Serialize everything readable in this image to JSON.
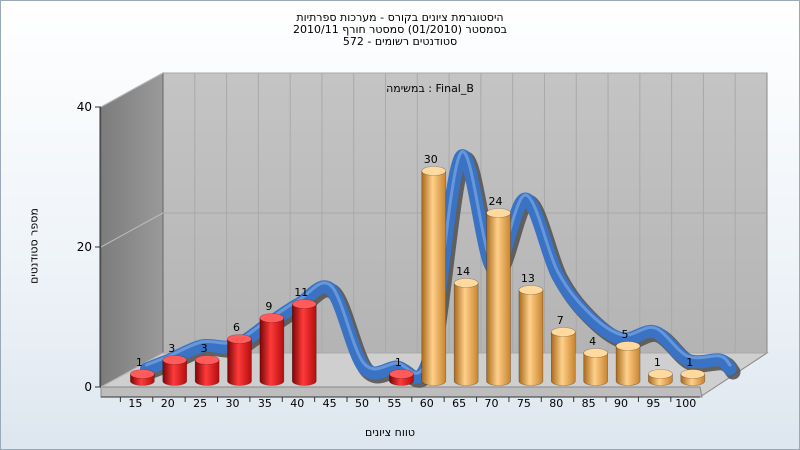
{
  "chart": {
    "title_lines": [
      "היסטוגרמת ציונים בקורס - מערכות ספרתיות",
      "בסמסטר (01/2010) סמסטר חורף 2010/11",
      "572 - סטודנטים רשומים"
    ],
    "task_label": "במשימה : Final_B",
    "ylabel": "מספר סטודנטים",
    "xlabel": "טווח ציונים"
  },
  "chart_data": {
    "type": "bar",
    "title": "היסטוגרמת ציונים בקורס - מערכות ספרתיות",
    "categories": [
      "15",
      "20",
      "25",
      "30",
      "35",
      "40",
      "45",
      "50",
      "55",
      "60",
      "65",
      "70",
      "75",
      "80",
      "85",
      "90",
      "95",
      "100"
    ],
    "values": [
      1,
      3,
      3,
      6,
      9,
      11,
      0,
      0,
      1,
      30,
      14,
      24,
      13,
      7,
      4,
      5,
      1,
      1
    ],
    "bar_colors": [
      "red",
      "red",
      "red",
      "red",
      "red",
      "red",
      "none",
      "none",
      "red",
      "orange",
      "orange",
      "orange",
      "orange",
      "orange",
      "orange",
      "orange",
      "orange",
      "orange"
    ],
    "xlabel": "טווח ציונים",
    "ylabel": "מספר סטודנטים",
    "ylim": [
      0,
      40
    ],
    "yticks": [
      0,
      20,
      40
    ],
    "grid": true,
    "legend": "none",
    "colors": {
      "fail": "#e01e1e",
      "pass": "#e9a33e",
      "curve": "#3a73c4",
      "curve_back": "#666666",
      "wall": "#8e8e8e",
      "floor": "#c8c8c8"
    }
  }
}
